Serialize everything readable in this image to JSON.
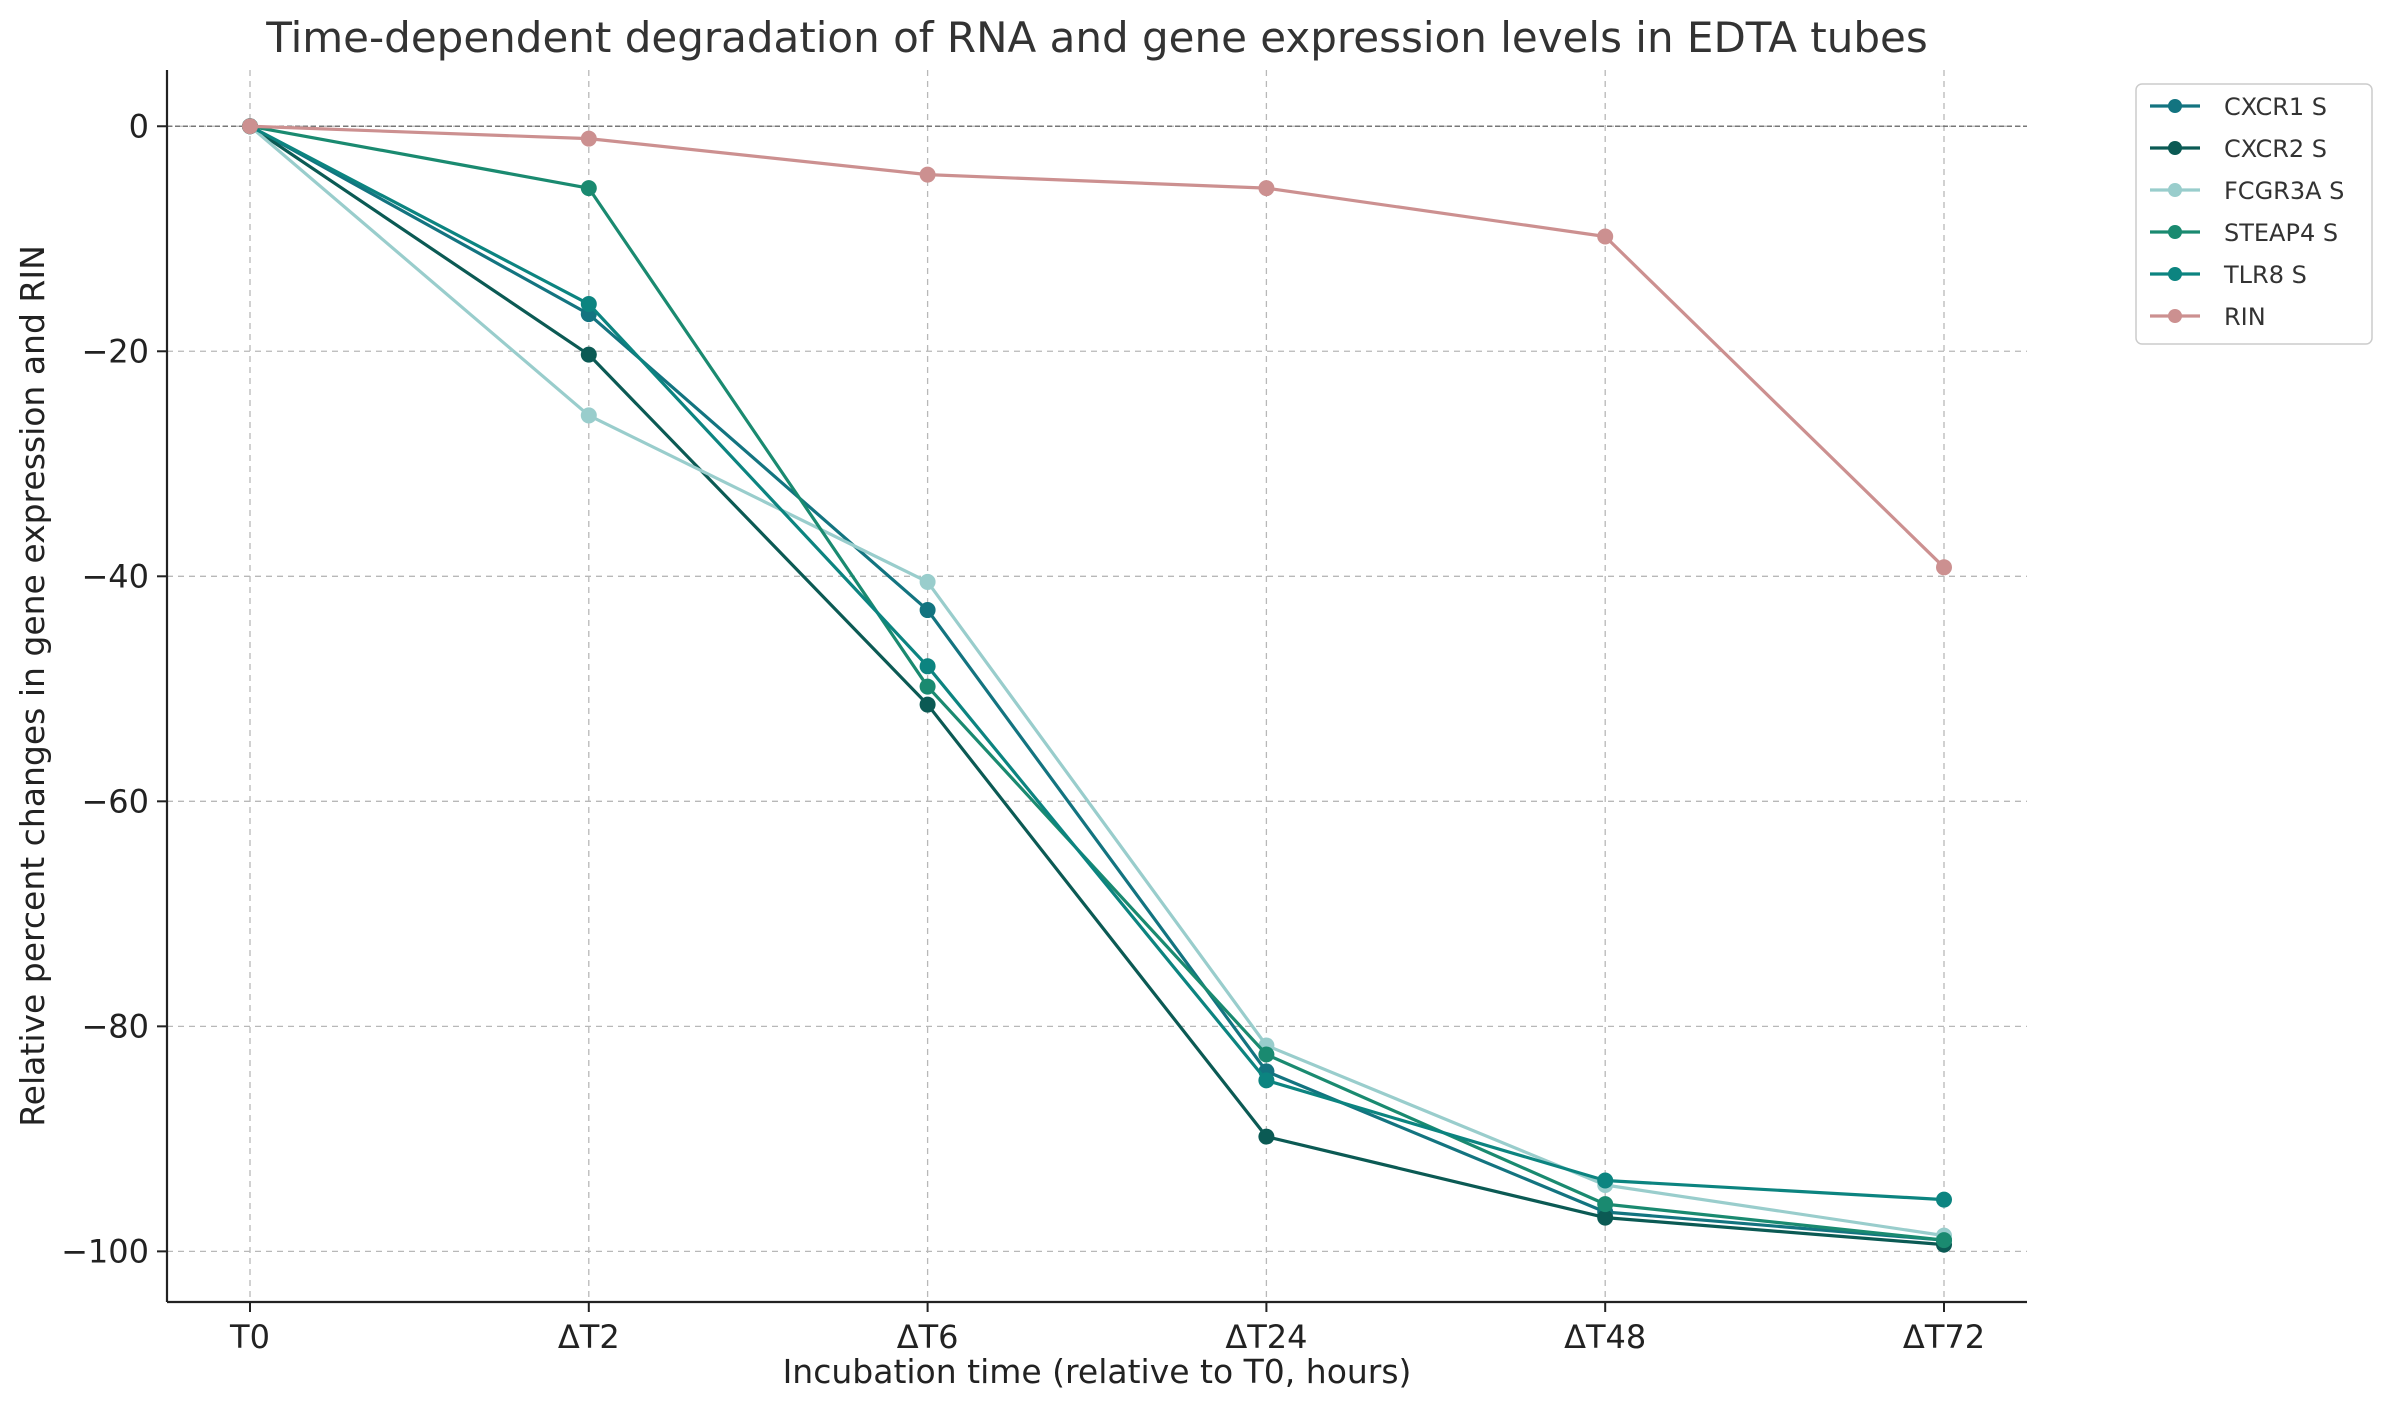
{
  "chart_data": {
    "type": "line",
    "title": "Time-dependent degradation of RNA and gene expression levels in EDTA tubes",
    "xlabel": "Incubation time (relative to T0, hours)",
    "ylabel": "Relative percent changes in gene expression and RIN",
    "categories": [
      "T0",
      "ΔT2",
      "ΔT6",
      "ΔT24",
      "ΔT48",
      "ΔT72"
    ],
    "ylim": [
      -104.5,
      5
    ],
    "yticks": [
      0,
      -20,
      -40,
      -60,
      -80,
      -100
    ],
    "ytick_labels": [
      "0",
      "−20",
      "−40",
      "−60",
      "−80",
      "−100"
    ],
    "grid": true,
    "zero_line": true,
    "legend_position": "outside top-right",
    "series": [
      {
        "name": "CXCR1 S",
        "color": "#137480",
        "values": [
          0,
          -16.7,
          -43.0,
          -84.0,
          -96.5,
          -99.0
        ]
      },
      {
        "name": "CXCR2 S",
        "color": "#0b5a54",
        "values": [
          0,
          -20.3,
          -51.4,
          -89.8,
          -97.0,
          -99.4
        ]
      },
      {
        "name": "FCGR3A S",
        "color": "#99cdcc",
        "values": [
          0,
          -25.7,
          -40.5,
          -81.7,
          -94.1,
          -98.6
        ]
      },
      {
        "name": "STEAP4 S",
        "color": "#1a8a70",
        "values": [
          0,
          -5.5,
          -49.8,
          -82.5,
          -95.8,
          -99.0
        ]
      },
      {
        "name": "TLR8 S",
        "color": "#0c8480",
        "values": [
          0,
          -15.8,
          -48.0,
          -84.8,
          -93.7,
          -95.4
        ]
      },
      {
        "name": "RIN",
        "color": "#cc9090",
        "values": [
          0,
          -1.1,
          -4.3,
          -5.5,
          -9.8,
          -39.2
        ]
      }
    ]
  }
}
